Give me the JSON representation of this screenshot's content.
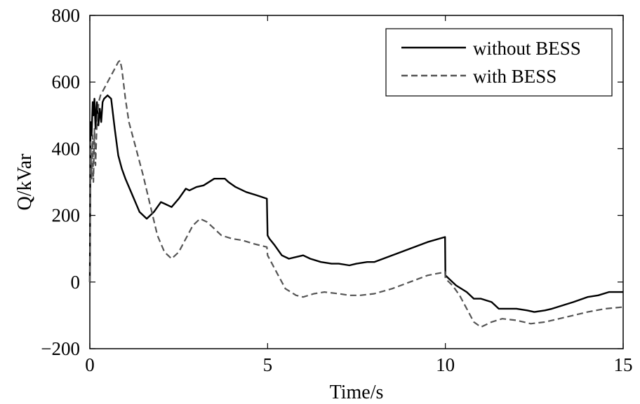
{
  "chart_data": {
    "type": "line",
    "title": "",
    "xlabel": "Time/s",
    "ylabel": "Q/kVar",
    "xlim": [
      0,
      15
    ],
    "ylim": [
      -200,
      800
    ],
    "xticks": [
      0,
      5,
      10,
      15
    ],
    "yticks": [
      -200,
      0,
      200,
      400,
      600,
      800
    ],
    "xtick_labels": [
      "0",
      "5",
      "10",
      "15"
    ],
    "ytick_labels": [
      "−200",
      "0",
      "200",
      "400",
      "600",
      "800"
    ],
    "grid": false,
    "legend_position": "top-right",
    "series": [
      {
        "name": "without BESS",
        "color": "#000000",
        "style": "solid",
        "x": [
          0,
          0.02,
          0.05,
          0.08,
          0.1,
          0.13,
          0.16,
          0.2,
          0.24,
          0.28,
          0.32,
          0.36,
          0.4,
          0.5,
          0.6,
          0.7,
          0.8,
          0.9,
          1.0,
          1.2,
          1.4,
          1.6,
          1.7,
          1.8,
          2.0,
          2.1,
          2.3,
          2.5,
          2.7,
          2.8,
          3.0,
          3.2,
          3.5,
          3.8,
          3.9,
          4.1,
          4.4,
          4.7,
          4.98,
          5.0,
          5.05,
          5.2,
          5.4,
          5.6,
          5.8,
          6.0,
          6.2,
          6.5,
          6.8,
          7.0,
          7.3,
          7.5,
          7.8,
          8.0,
          8.5,
          9.0,
          9.5,
          9.99,
          10.0,
          10.1,
          10.3,
          10.6,
          10.8,
          11.0,
          11.3,
          11.5,
          11.8,
          12.0,
          12.3,
          12.5,
          12.8,
          13.0,
          13.3,
          13.6,
          14.0,
          14.3,
          14.6,
          15.0
        ],
        "y": [
          0,
          480,
          440,
          540,
          500,
          550,
          460,
          540,
          470,
          520,
          480,
          540,
          550,
          560,
          550,
          460,
          380,
          340,
          310,
          260,
          210,
          190,
          200,
          210,
          240,
          235,
          225,
          250,
          280,
          275,
          285,
          290,
          310,
          310,
          300,
          285,
          270,
          260,
          250,
          140,
          130,
          110,
          80,
          70,
          75,
          80,
          70,
          60,
          55,
          55,
          50,
          55,
          60,
          60,
          80,
          100,
          120,
          135,
          20,
          10,
          -10,
          -30,
          -50,
          -50,
          -60,
          -80,
          -80,
          -80,
          -85,
          -90,
          -85,
          -80,
          -70,
          -60,
          -45,
          -40,
          -30,
          -30
        ]
      },
      {
        "name": "with BESS",
        "color": "#555555",
        "style": "dashed",
        "x": [
          0,
          0.02,
          0.05,
          0.08,
          0.1,
          0.13,
          0.16,
          0.2,
          0.25,
          0.3,
          0.4,
          0.5,
          0.6,
          0.7,
          0.8,
          0.85,
          0.9,
          1.0,
          1.1,
          1.3,
          1.5,
          1.7,
          1.9,
          2.1,
          2.3,
          2.5,
          2.7,
          2.9,
          3.1,
          3.3,
          3.5,
          3.7,
          4.0,
          4.3,
          4.6,
          4.98,
          5.0,
          5.1,
          5.3,
          5.5,
          5.8,
          6.0,
          6.3,
          6.6,
          7.0,
          7.3,
          7.6,
          8.0,
          8.5,
          9.0,
          9.5,
          9.99,
          10.0,
          10.2,
          10.4,
          10.6,
          10.8,
          11.0,
          11.3,
          11.6,
          12.0,
          12.4,
          12.8,
          13.2,
          13.6,
          14.0,
          14.5,
          15.0
        ],
        "y": [
          0,
          420,
          310,
          440,
          300,
          460,
          350,
          480,
          540,
          560,
          580,
          600,
          620,
          640,
          660,
          665,
          640,
          550,
          480,
          400,
          320,
          230,
          140,
          90,
          70,
          90,
          130,
          170,
          190,
          180,
          160,
          140,
          130,
          125,
          115,
          105,
          80,
          60,
          20,
          -20,
          -40,
          -45,
          -35,
          -30,
          -35,
          -40,
          -40,
          -35,
          -20,
          0,
          20,
          30,
          10,
          -10,
          -40,
          -80,
          -120,
          -135,
          -120,
          -110,
          -115,
          -125,
          -120,
          -110,
          -100,
          -90,
          -80,
          -75
        ]
      }
    ]
  }
}
